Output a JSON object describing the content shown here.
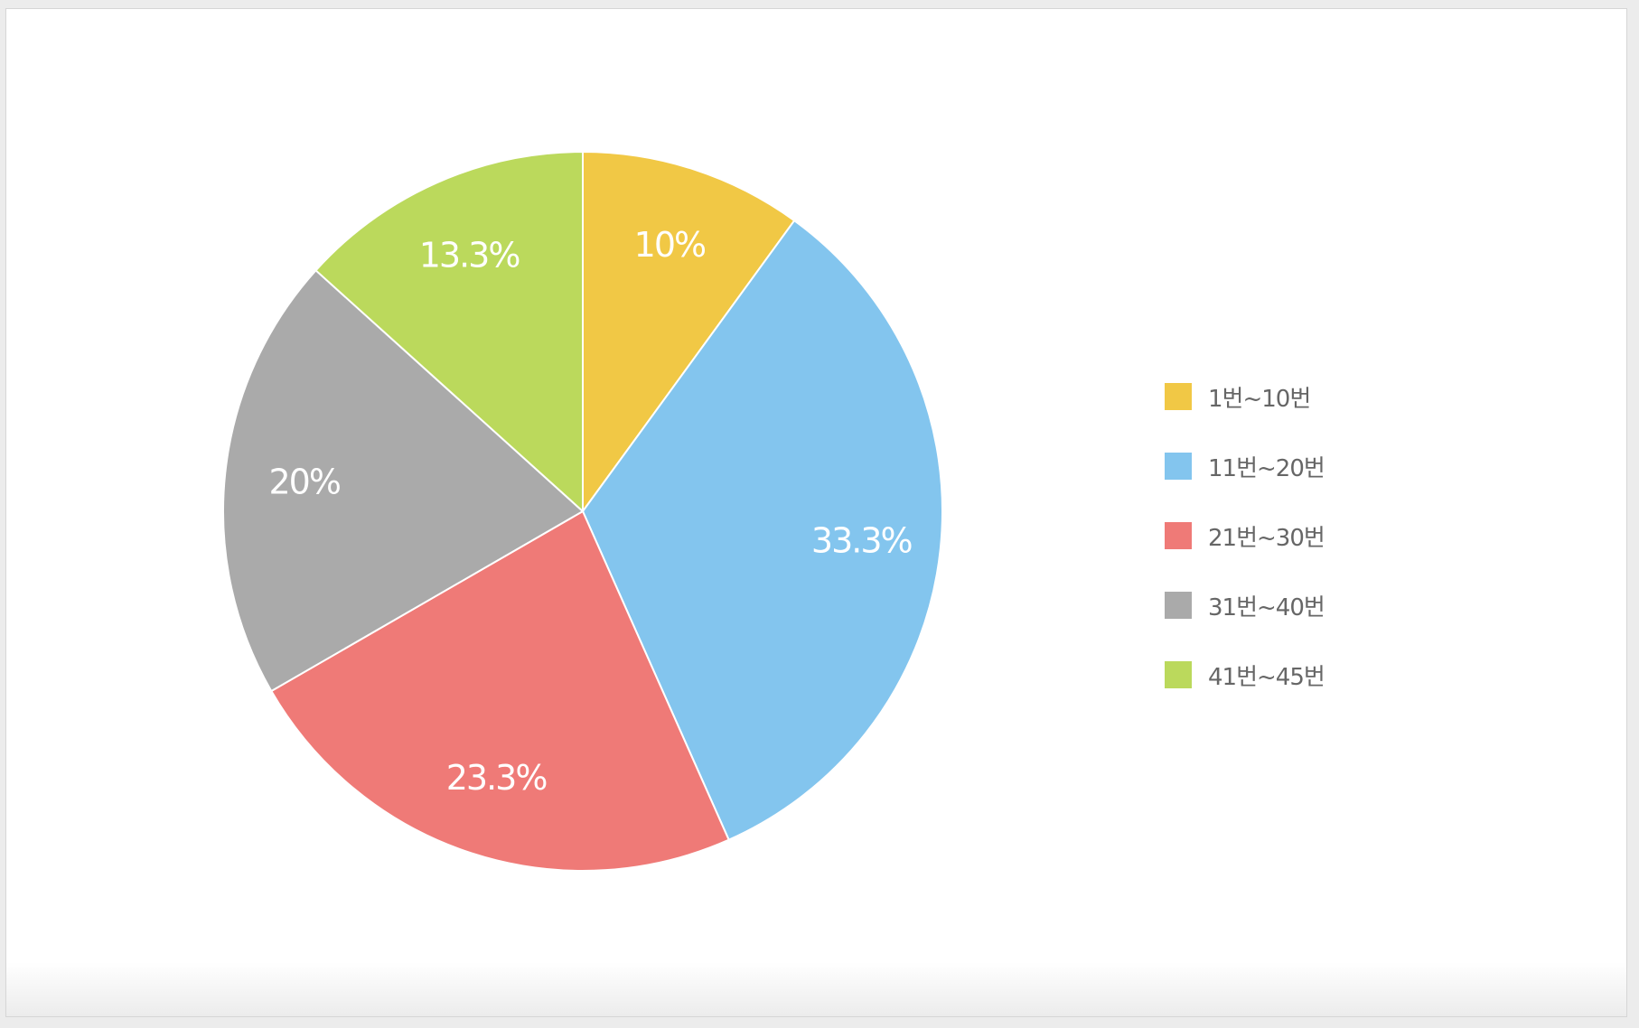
{
  "chart_data": {
    "type": "pie",
    "start_angle_deg": 0,
    "direction": "clockwise",
    "legend_position": "right",
    "title": "",
    "slices": [
      {
        "label": "1번~10번",
        "value": 10,
        "display": "10%",
        "color": "#F1C845"
      },
      {
        "label": "11번~20번",
        "value": 33.3,
        "display": "33.3%",
        "color": "#83C5EE"
      },
      {
        "label": "21번~30번",
        "value": 23.3,
        "display": "23.3%",
        "color": "#EF7A77"
      },
      {
        "label": "31번~40번",
        "value": 20,
        "display": "20%",
        "color": "#AAAAAA"
      },
      {
        "label": "41번~45번",
        "value": 13.3,
        "display": "13.3%",
        "color": "#BBD95C"
      }
    ]
  }
}
